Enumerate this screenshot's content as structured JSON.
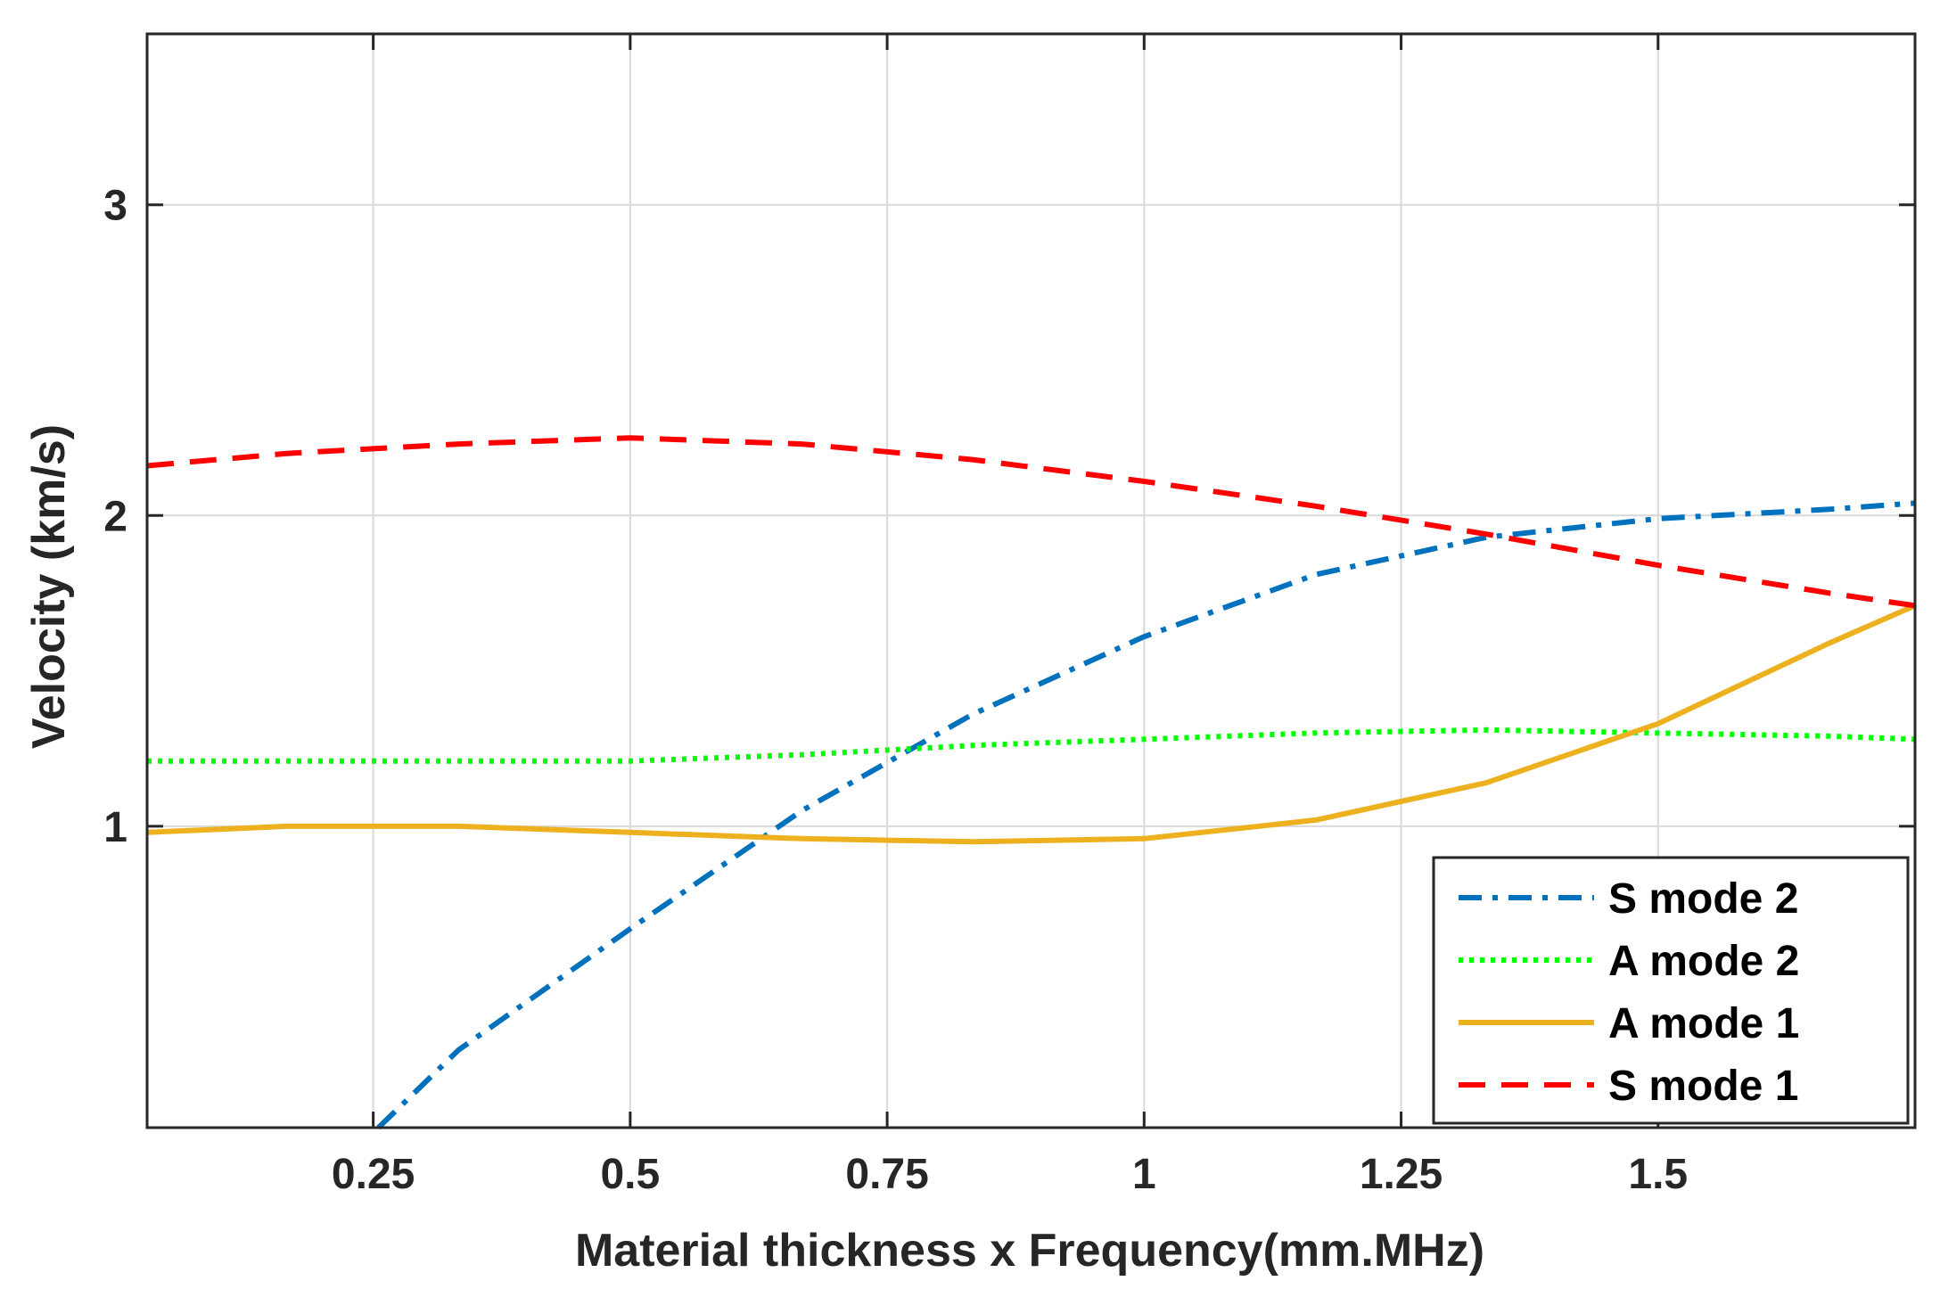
{
  "chart_data": {
    "type": "line",
    "title": "",
    "xlabel": "Material thickness x Frequency(mm.MHz)",
    "ylabel": "Velocity (km/s)",
    "xlim": [
      0.03,
      1.75
    ],
    "ylim": [
      0.03,
      3.55
    ],
    "xticks": [
      0.25,
      0.5,
      0.75,
      1,
      1.25,
      1.5
    ],
    "xtick_labels": [
      "0.25",
      "0.5",
      "0.75",
      "1",
      "1.25",
      "1.5"
    ],
    "yticks": [
      1,
      2,
      3
    ],
    "ytick_labels": [
      "1",
      "2",
      "3"
    ],
    "grid": true,
    "legend_position": "bottom-right",
    "series": [
      {
        "name": "S mode 2",
        "color": "#0072BD",
        "style": "dashdot",
        "x": [
          0.255,
          0.333,
          0.5,
          0.667,
          0.833,
          1.0,
          1.167,
          1.333,
          1.5,
          1.667,
          1.75
        ],
        "y": [
          0.03,
          0.28,
          0.67,
          1.05,
          1.36,
          1.61,
          1.81,
          1.93,
          1.99,
          2.02,
          2.04
        ]
      },
      {
        "name": "A mode 2",
        "color": "#00FF00",
        "style": "dotted",
        "x": [
          0.03,
          0.167,
          0.333,
          0.5,
          0.667,
          0.833,
          1.0,
          1.167,
          1.333,
          1.5,
          1.667,
          1.75
        ],
        "y": [
          1.21,
          1.21,
          1.21,
          1.21,
          1.23,
          1.26,
          1.28,
          1.3,
          1.31,
          1.3,
          1.29,
          1.28
        ]
      },
      {
        "name": "A mode 1",
        "color": "#EDB120",
        "style": "solid",
        "x": [
          0.03,
          0.167,
          0.333,
          0.5,
          0.667,
          0.833,
          1.0,
          1.167,
          1.333,
          1.5,
          1.667,
          1.75
        ],
        "y": [
          0.98,
          1.0,
          1.0,
          0.98,
          0.96,
          0.95,
          0.96,
          1.02,
          1.14,
          1.33,
          1.59,
          1.71
        ]
      },
      {
        "name": "S mode 1",
        "color": "#FF0000",
        "style": "dashed",
        "x": [
          0.03,
          0.167,
          0.333,
          0.5,
          0.667,
          0.833,
          1.0,
          1.167,
          1.333,
          1.5,
          1.667,
          1.75
        ],
        "y": [
          2.16,
          2.2,
          2.23,
          2.25,
          2.23,
          2.18,
          2.11,
          2.03,
          1.94,
          1.84,
          1.75,
          1.71
        ]
      }
    ],
    "legend_order": [
      "S mode 2",
      "A mode 2",
      "A mode 1",
      "S mode 1"
    ]
  }
}
